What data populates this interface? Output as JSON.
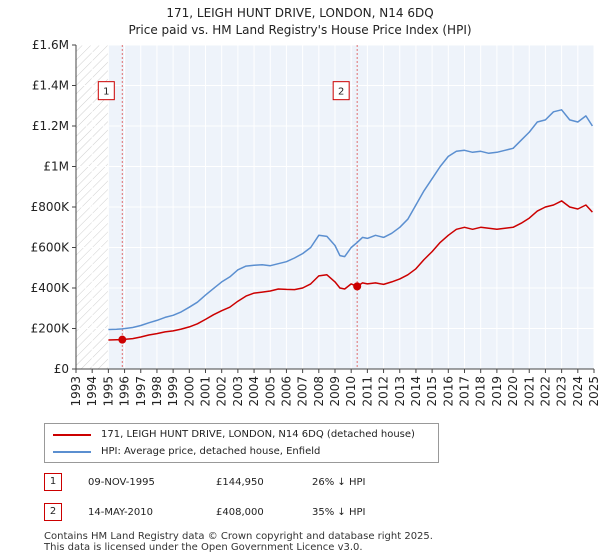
{
  "chart_data": {
    "type": "line",
    "title": "171, LEIGH HUNT DRIVE, LONDON, N14 6DQ",
    "subtitle": "Price paid vs. HM Land Registry's House Price Index (HPI)",
    "xlabel": "",
    "ylabel": "",
    "xlim": [
      1993,
      2025
    ],
    "ylim": [
      0,
      1600000
    ],
    "x_ticks": [
      "1993",
      "1994",
      "1995",
      "1996",
      "1997",
      "1998",
      "1999",
      "2000",
      "2001",
      "2002",
      "2003",
      "2004",
      "2005",
      "2006",
      "2007",
      "2008",
      "2009",
      "2010",
      "2011",
      "2012",
      "2013",
      "2014",
      "2015",
      "2016",
      "2017",
      "2018",
      "2019",
      "2020",
      "2021",
      "2022",
      "2023",
      "2024",
      "2025"
    ],
    "y_ticks": [
      {
        "value": 0,
        "label": "£0"
      },
      {
        "value": 200000,
        "label": "£200K"
      },
      {
        "value": 400000,
        "label": "£400K"
      },
      {
        "value": 600000,
        "label": "£600K"
      },
      {
        "value": 800000,
        "label": "£800K"
      },
      {
        "value": 1000000,
        "label": "£1M"
      },
      {
        "value": 1200000,
        "label": "£1.2M"
      },
      {
        "value": 1400000,
        "label": "£1.4M"
      },
      {
        "value": 1600000,
        "label": "£1.6M"
      }
    ],
    "grid": true,
    "hatched_before_year": 1995,
    "series": [
      {
        "name": "171, LEIGH HUNT DRIVE, LONDON, N14 6DQ (detached house)",
        "color": "#cc0000",
        "x": [
          1995.0,
          1995.5,
          1995.86,
          1996.5,
          1997.0,
          1997.5,
          1998.0,
          1998.5,
          1999.0,
          1999.5,
          2000.0,
          2000.5,
          2001.0,
          2001.5,
          2002.0,
          2002.5,
          2003.0,
          2003.5,
          2004.0,
          2004.5,
          2005.0,
          2005.5,
          2006.0,
          2006.5,
          2007.0,
          2007.5,
          2008.0,
          2008.5,
          2009.0,
          2009.3,
          2009.6,
          2010.0,
          2010.37,
          2010.7,
          2011.0,
          2011.5,
          2012.0,
          2012.5,
          2013.0,
          2013.5,
          2014.0,
          2014.5,
          2015.0,
          2015.5,
          2016.0,
          2016.5,
          2017.0,
          2017.5,
          2018.0,
          2018.5,
          2019.0,
          2019.5,
          2020.0,
          2020.5,
          2021.0,
          2021.5,
          2022.0,
          2022.5,
          2023.0,
          2023.5,
          2024.0,
          2024.5,
          2024.9
        ],
        "y": [
          143000,
          144000,
          144950,
          150000,
          158000,
          168000,
          175000,
          183000,
          188000,
          197000,
          208000,
          223000,
          245000,
          268000,
          288000,
          305000,
          335000,
          360000,
          375000,
          380000,
          385000,
          395000,
          393000,
          392000,
          400000,
          420000,
          460000,
          465000,
          430000,
          400000,
          395000,
          420000,
          408000,
          425000,
          420000,
          425000,
          418000,
          430000,
          445000,
          465000,
          495000,
          540000,
          580000,
          625000,
          660000,
          690000,
          700000,
          690000,
          700000,
          695000,
          690000,
          695000,
          700000,
          720000,
          745000,
          780000,
          800000,
          810000,
          830000,
          800000,
          790000,
          810000,
          775000
        ]
      },
      {
        "name": "HPI: Average price, detached house, Enfield",
        "color": "#5b8fd0",
        "x": [
          1995.0,
          1995.5,
          1995.86,
          1996.5,
          1997.0,
          1997.5,
          1998.0,
          1998.5,
          1999.0,
          1999.5,
          2000.0,
          2000.5,
          2001.0,
          2001.5,
          2002.0,
          2002.5,
          2003.0,
          2003.5,
          2004.0,
          2004.5,
          2005.0,
          2005.5,
          2006.0,
          2006.5,
          2007.0,
          2007.5,
          2008.0,
          2008.5,
          2009.0,
          2009.3,
          2009.6,
          2010.0,
          2010.37,
          2010.7,
          2011.0,
          2011.5,
          2012.0,
          2012.5,
          2013.0,
          2013.5,
          2014.0,
          2014.5,
          2015.0,
          2015.5,
          2016.0,
          2016.5,
          2017.0,
          2017.5,
          2018.0,
          2018.5,
          2019.0,
          2019.5,
          2020.0,
          2020.5,
          2021.0,
          2021.5,
          2022.0,
          2022.5,
          2023.0,
          2023.5,
          2024.0,
          2024.5,
          2024.9
        ],
        "y": [
          195000,
          196000,
          198000,
          205000,
          215000,
          228000,
          240000,
          255000,
          265000,
          282000,
          305000,
          330000,
          365000,
          398000,
          430000,
          455000,
          490000,
          508000,
          512000,
          515000,
          510000,
          520000,
          530000,
          548000,
          570000,
          600000,
          660000,
          655000,
          610000,
          560000,
          555000,
          600000,
          625000,
          650000,
          645000,
          660000,
          650000,
          670000,
          700000,
          740000,
          810000,
          880000,
          940000,
          1000000,
          1050000,
          1075000,
          1080000,
          1070000,
          1075000,
          1065000,
          1070000,
          1080000,
          1090000,
          1130000,
          1170000,
          1220000,
          1230000,
          1270000,
          1280000,
          1230000,
          1220000,
          1250000,
          1200000
        ]
      }
    ],
    "annotations": [
      {
        "label": "1",
        "x": 1995.86,
        "price": 144950,
        "label_y": 1330000
      },
      {
        "label": "2",
        "x": 2010.37,
        "price": 408000,
        "label_y": 1330000
      }
    ]
  },
  "legend": {
    "property_label": "171, LEIGH HUNT DRIVE, LONDON, N14 6DQ (detached house)",
    "hpi_label": "HPI: Average price, detached house, Enfield",
    "property_color": "#cc0000",
    "hpi_color": "#5b8fd0"
  },
  "transactions": [
    {
      "num": "1",
      "date": "09-NOV-1995",
      "price": "£144,950",
      "hpi": "26% ↓ HPI"
    },
    {
      "num": "2",
      "date": "14-MAY-2010",
      "price": "£408,000",
      "hpi": "35% ↓ HPI"
    }
  ],
  "footer": {
    "line1": "Contains HM Land Registry data © Crown copyright and database right 2025.",
    "line2": "This data is licensed under the Open Government Licence v3.0."
  }
}
